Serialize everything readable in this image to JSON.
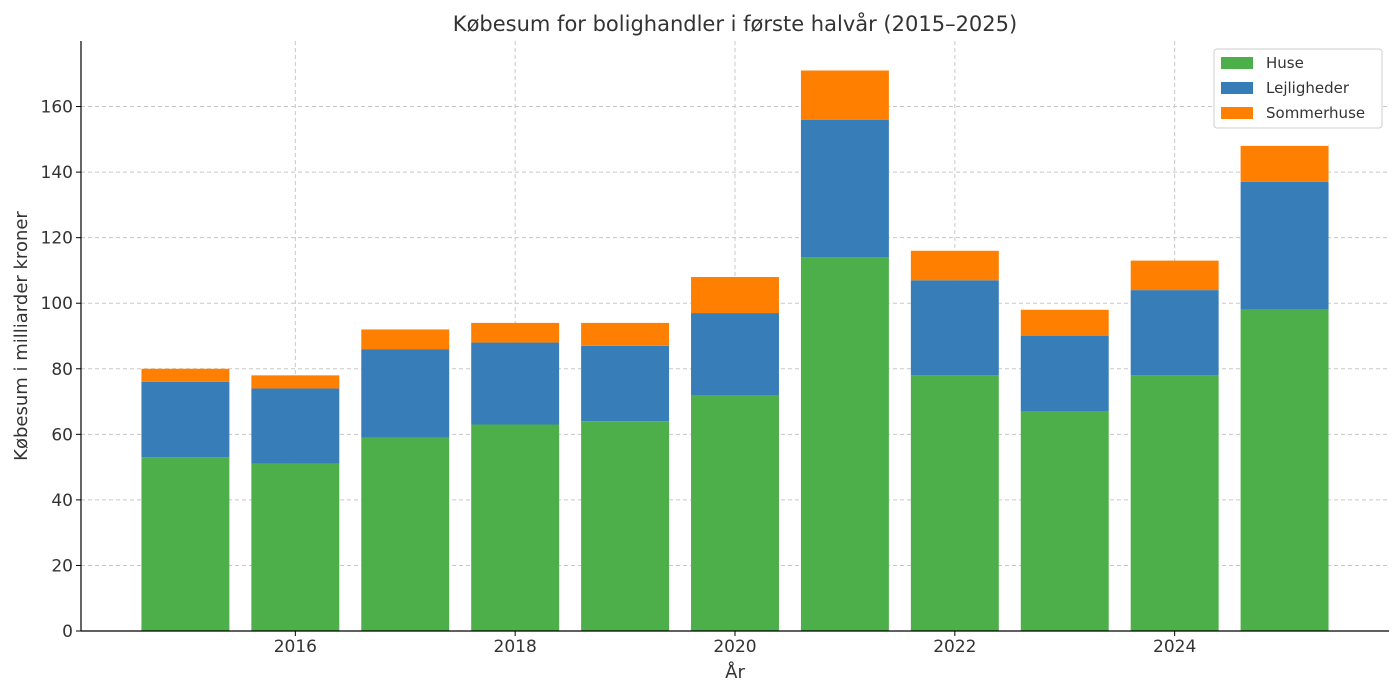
{
  "chart_data": {
    "type": "bar",
    "stacked": true,
    "title": "Købesum for bolighandler i første halvår (2015–2025)",
    "xlabel": "År",
    "ylabel": "Købesum i milliarder kroner",
    "x": [
      2015,
      2016,
      2017,
      2018,
      2019,
      2020,
      2021,
      2022,
      2023,
      2024,
      2025
    ],
    "xticks": [
      "2016",
      "2018",
      "2020",
      "2022",
      "2024"
    ],
    "yticks": [
      "0",
      "20",
      "40",
      "60",
      "80",
      "100",
      "120",
      "140",
      "160"
    ],
    "ylim": [
      0,
      180
    ],
    "grid": true,
    "legend_position": "top-right",
    "series": [
      {
        "name": "Huse",
        "color": "#4daf4a",
        "values": [
          53,
          51,
          59,
          63,
          64,
          72,
          114,
          78,
          67,
          78,
          98
        ]
      },
      {
        "name": "Lejligheder",
        "color": "#377eb8",
        "values": [
          23,
          23,
          27,
          25,
          23,
          25,
          42,
          29,
          23,
          26,
          39
        ]
      },
      {
        "name": "Sommerhuse",
        "color": "#ff7f00",
        "values": [
          4,
          4,
          6,
          6,
          7,
          11,
          15,
          9,
          8,
          9,
          11
        ]
      }
    ]
  }
}
